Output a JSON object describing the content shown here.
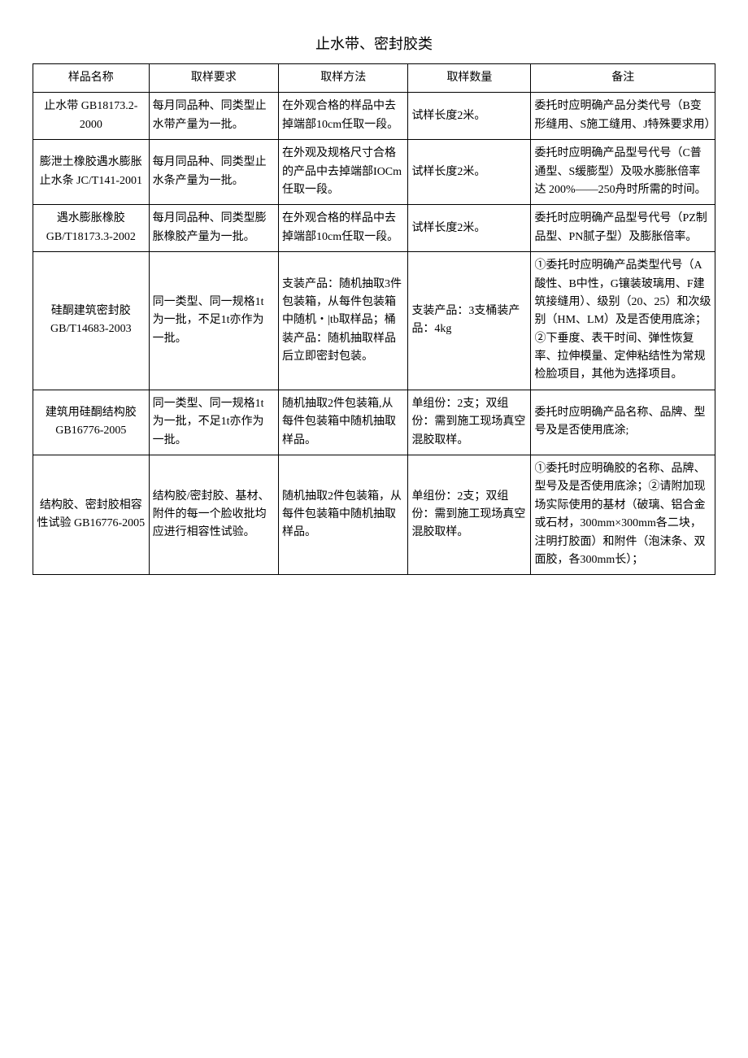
{
  "document": {
    "title": "止水带、密封胶类",
    "columns": [
      "样品名称",
      "取样要求",
      "取样方法",
      "取样数量",
      "备注"
    ],
    "rows": [
      {
        "name": "止水带\nGB18173.2-2000",
        "req": "每月同品种、同类型止水带产量为一批。",
        "method": "在外观合格的样品中去掉端部10cm任取一段。",
        "qty": "试样长度2米。",
        "note": "委托时应明确产品分类代号（B变形缝用、S施工缝用、J特殊要求用）"
      },
      {
        "name": "膨泄土橡胶遇水膨胀止水条 JC/T141-2001",
        "req": "每月同品种、同类型止水条产量为一批。",
        "method": "在外观及规格尺寸合格的产品中去掉端部IOCm任取一段。",
        "qty": "试样长度2米。",
        "note": "委托时应明确产品型号代号（C普通型、S缓膨型）及吸水膨胀倍率达\n200%——250舟时所需的时间。"
      },
      {
        "name": "遇水膨胀橡胶\nGB/T18173.3-2002",
        "req": "每月同品种、同类型膨胀橡胶产量为一批。",
        "method": "在外观合格的样品中去掉端部10cm任取一段。",
        "qty": "试样长度2米。",
        "note": "委托时应明确产品型号代号（PZ制品型、PN腻子型）及膨胀倍率。"
      },
      {
        "name": "硅酮建筑密封胶\nGB/T14683-2003",
        "req": "同一类型、同一规格1t为一批，不足1t亦作为一批。",
        "method": "支装产品：随机抽取3件包装箱，从每件包装箱中随机・|tb取样品；桶装产品：随机抽取样品后立即密封包装。",
        "qty": "支装产品：3支桶装产品：4kg",
        "note": "①委托时应明确产品类型代号（A酸性、B中性，G镶装玻璃用、F建筑接缝用）、级别（20、25）和次级别（HM、LM）及是否使用底涂；②下垂度、表干时间、弹性恢复率、拉伸模量、定伸粘结性为常规检脸项目，其他为选择项目。"
      },
      {
        "name": "建筑用硅酮结构胶\nGB16776-2005",
        "req": "同一类型、同一规格1t为一批，不足1t亦作为一批。",
        "method": "随机抽取2件包装箱,从每件包装箱中随机抽取样品。",
        "qty": "单组份：2支；双组份：需到施工现场真空混胶取样。",
        "note": "委托时应明确产品名称、品牌、型号及是否使用底涂;"
      },
      {
        "name": "结构胶、密封胶相容性试验 GB16776-2005",
        "req": "结构胶/密封胶、基材、附件的每一个脸收批均应进行相容性试验。",
        "method": "随机抽取2件包装箱，从每件包装箱中随机抽取样品。",
        "qty": "单组份：2支；双组份：需到施工现场真空混胶取样。",
        "note": "①委托时应明确胶的名称、品牌、型号及是否使用底涂；②请附加现场实际使用的基材（破璃、铝合金或石材，300mm×300mm各二块，注明打胶面）和附件（泡沫条、双面胶，各300mm长）；"
      }
    ]
  }
}
